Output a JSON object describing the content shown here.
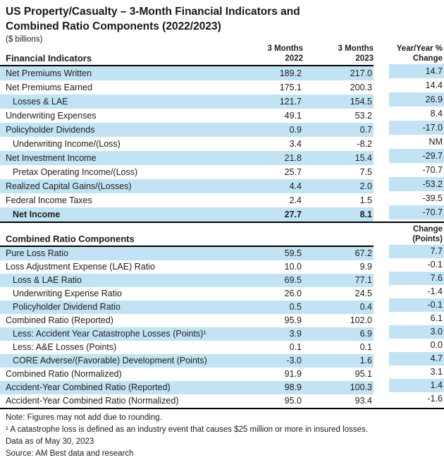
{
  "colors": {
    "row_blue": "#c2e3f3",
    "rule": "#000000",
    "text": "#1c1c1c"
  },
  "title": {
    "line1": "US Property/Casualty – 3-Month Financial Indicators and",
    "line2": "Combined Ratio Components (2022/2023)",
    "subtitle": "($ billions)"
  },
  "chart_data": [
    {
      "type": "table",
      "section_label": "Financial Indicators",
      "col_headers": [
        [
          "3 Months",
          "2022"
        ],
        [
          "3 Months",
          "2023"
        ],
        [
          "Year/Year %",
          "Change"
        ]
      ],
      "rows": [
        {
          "label": "Net Premiums Written",
          "v2022": "189.2",
          "v2023": "217.0",
          "change": "14.7",
          "shaded": true,
          "indent": false,
          "bold": false
        },
        {
          "label": "Net Premiums Earned",
          "v2022": "175.1",
          "v2023": "200.3",
          "change": "14.4",
          "shaded": false,
          "indent": false,
          "bold": false
        },
        {
          "label": "Losses & LAE",
          "v2022": "121.7",
          "v2023": "154.5",
          "change": "26.9",
          "shaded": true,
          "indent": true,
          "bold": false
        },
        {
          "label": "Underwriting Expenses",
          "v2022": "49.1",
          "v2023": "53.2",
          "change": "8.4",
          "shaded": false,
          "indent": false,
          "bold": false
        },
        {
          "label": "Policyholder Dividends",
          "v2022": "0.9",
          "v2023": "0.7",
          "change": "-17.0",
          "shaded": true,
          "indent": false,
          "bold": false
        },
        {
          "label": "Underwriting Income/(Loss)",
          "v2022": "3.4",
          "v2023": "-8.2",
          "change": "NM",
          "shaded": false,
          "indent": true,
          "bold": false
        },
        {
          "label": "Net Investment Income",
          "v2022": "21.8",
          "v2023": "15.4",
          "change": "-29.7",
          "shaded": true,
          "indent": false,
          "bold": false
        },
        {
          "label": "Pretax Operating Income/(Loss)",
          "v2022": "25.7",
          "v2023": "7.5",
          "change": "-70.7",
          "shaded": false,
          "indent": true,
          "bold": false
        },
        {
          "label": "Realized Capital Gains/(Losses)",
          "v2022": "4.4",
          "v2023": "2.0",
          "change": "-53.2",
          "shaded": true,
          "indent": false,
          "bold": false
        },
        {
          "label": "Federal Income Taxes",
          "v2022": "2.4",
          "v2023": "1.5",
          "change": "-39.5",
          "shaded": false,
          "indent": false,
          "bold": false
        },
        {
          "label": "Net Income",
          "v2022": "27.7",
          "v2023": "8.1",
          "change": "-70.7",
          "shaded": true,
          "indent": true,
          "bold": true
        }
      ]
    },
    {
      "type": "table",
      "section_label": "Combined Ratio Components",
      "col_headers": [
        [
          "",
          ""
        ],
        [
          "",
          ""
        ],
        [
          "Change",
          "(Points)"
        ]
      ],
      "rows": [
        {
          "label": "Pure Loss Ratio",
          "v2022": "59.5",
          "v2023": "67.2",
          "change": "7.7",
          "shaded": true,
          "indent": false,
          "bold": false
        },
        {
          "label": "Loss Adjustment Expense (LAE) Ratio",
          "v2022": "10.0",
          "v2023": "9.9",
          "change": "-0.1",
          "shaded": false,
          "indent": false,
          "bold": false
        },
        {
          "label": "Loss & LAE Ratio",
          "v2022": "69.5",
          "v2023": "77.1",
          "change": "7.6",
          "shaded": true,
          "indent": true,
          "bold": false
        },
        {
          "label": "Underwriting Expense Ratio",
          "v2022": "26.0",
          "v2023": "24.5",
          "change": "-1.4",
          "shaded": false,
          "indent": true,
          "bold": false
        },
        {
          "label": "Policyholder Dividend Ratio",
          "v2022": "0.5",
          "v2023": "0.4",
          "change": "-0.1",
          "shaded": true,
          "indent": true,
          "bold": false
        },
        {
          "label": "Combined Ratio (Reported)",
          "v2022": "95.9",
          "v2023": "102.0",
          "change": "6.1",
          "shaded": false,
          "indent": false,
          "bold": false
        },
        {
          "label": "Less: Accident Year Catastrophe Losses (Points)¹",
          "v2022": "3.9",
          "v2023": "6.9",
          "change": "3.0",
          "shaded": true,
          "indent": true,
          "bold": false
        },
        {
          "label": "Less: A&E Losses (Points)",
          "v2022": "0.1",
          "v2023": "0.1",
          "change": "0.0",
          "shaded": false,
          "indent": true,
          "bold": false
        },
        {
          "label": "CORE Adverse/(Favorable) Development (Points)",
          "v2022": "-3.0",
          "v2023": "1.6",
          "change": "4.7",
          "shaded": true,
          "indent": true,
          "bold": false
        },
        {
          "label": "Combined Ratio (Normalized)",
          "v2022": "91.9",
          "v2023": "95.1",
          "change": "3.1",
          "shaded": false,
          "indent": false,
          "bold": false
        },
        {
          "label": "Accident-Year Combined Ratio (Reported)",
          "v2022": "98.9",
          "v2023": "100.3",
          "change": "1.4",
          "shaded": true,
          "indent": false,
          "bold": false
        },
        {
          "label": "Accident-Year Combined Ratio (Normalized)",
          "v2022": "95.0",
          "v2023": "93.4",
          "change": "-1.6",
          "shaded": false,
          "indent": false,
          "bold": false
        }
      ]
    }
  ],
  "footnotes": [
    "Note: Figures may not add due to rounding.",
    "¹ A catastrophe loss is defined as an industry event that causes $25 million or more in insured losses.",
    "Data as of May 30, 2023",
    "Source: AM Best data and research"
  ]
}
